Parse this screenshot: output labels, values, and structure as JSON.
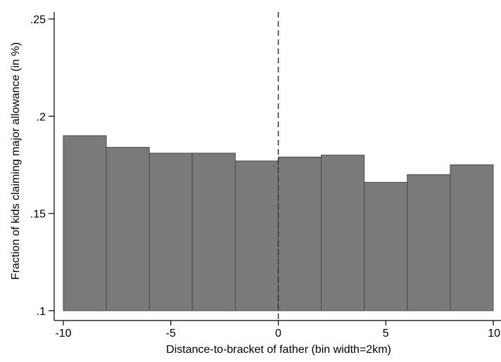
{
  "chart_data": {
    "type": "bar",
    "title": "",
    "xlabel": "Distance-to-bracket of father (bin width=2km)",
    "ylabel": "Fraction of kids claiming major allowance (in %)",
    "xlim": [
      -10,
      10
    ],
    "ylim": [
      0.1,
      0.25
    ],
    "x_ticks": [
      {
        "value": -10,
        "label": "-10"
      },
      {
        "value": -5,
        "label": "-5"
      },
      {
        "value": 0,
        "label": "0"
      },
      {
        "value": 5,
        "label": "5"
      },
      {
        "value": 10,
        "label": "10"
      }
    ],
    "y_ticks": [
      {
        "value": 0.1,
        "label": ".1"
      },
      {
        "value": 0.15,
        "label": ".15"
      },
      {
        "value": 0.2,
        "label": ".2"
      },
      {
        "value": 0.25,
        "label": ".25"
      }
    ],
    "bins": [
      {
        "x_start": -10,
        "x_end": -8,
        "value": 0.19
      },
      {
        "x_start": -8,
        "x_end": -6,
        "value": 0.184
      },
      {
        "x_start": -6,
        "x_end": -4,
        "value": 0.181
      },
      {
        "x_start": -4,
        "x_end": -2,
        "value": 0.181
      },
      {
        "x_start": -2,
        "x_end": 0,
        "value": 0.177
      },
      {
        "x_start": 0,
        "x_end": 2,
        "value": 0.179
      },
      {
        "x_start": 2,
        "x_end": 4,
        "value": 0.18
      },
      {
        "x_start": 4,
        "x_end": 6,
        "value": 0.166
      },
      {
        "x_start": 6,
        "x_end": 8,
        "value": 0.17
      },
      {
        "x_start": 8,
        "x_end": 10,
        "value": 0.175
      }
    ],
    "reference_line": {
      "x": 0,
      "style": "dashed"
    },
    "grid": false,
    "legend": "none",
    "colors": {
      "bar_fill": "#7a7a7a",
      "bar_stroke": "#4a4a4a",
      "axis": "#000000",
      "reference_line": "#333333"
    }
  }
}
